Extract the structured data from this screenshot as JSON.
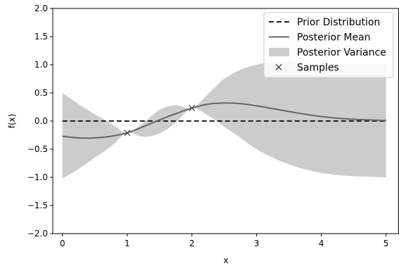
{
  "chart_data": {
    "type": "line",
    "xlabel": "x",
    "ylabel": "f(x)",
    "xlim": [
      -0.15,
      5.2
    ],
    "ylim": [
      -2.0,
      2.0
    ],
    "xticks": [
      0,
      1,
      2,
      3,
      4,
      5
    ],
    "yticks": [
      -2.0,
      -1.5,
      -1.0,
      -0.5,
      0.0,
      0.5,
      1.0,
      1.5,
      2.0
    ],
    "xtick_labels": [
      "0",
      "1",
      "2",
      "3",
      "4",
      "5"
    ],
    "ytick_labels": [
      "−2.0",
      "−1.5",
      "−1.0",
      "−0.5",
      "0.0",
      "0.5",
      "1.0",
      "1.5",
      "2.0"
    ],
    "grid": false,
    "legend_position": "top-right",
    "series": [
      {
        "name": "Prior Distribution",
        "kind": "line",
        "style": "dashed",
        "color": "#222222",
        "x": [
          0,
          5
        ],
        "y": [
          0.0,
          0.0
        ]
      },
      {
        "name": "Posterior Mean",
        "kind": "line",
        "style": "solid",
        "color": "#666666",
        "x": [
          0,
          0.25,
          0.5,
          0.75,
          1.0,
          1.25,
          1.5,
          1.75,
          2.0,
          2.25,
          2.5,
          2.75,
          3.0,
          3.25,
          3.5,
          3.75,
          4.0,
          4.25,
          4.5,
          4.75,
          5.0
        ],
        "y": [
          -0.27,
          -0.3,
          -0.3,
          -0.27,
          -0.21,
          -0.1,
          0.02,
          0.13,
          0.23,
          0.3,
          0.32,
          0.31,
          0.27,
          0.22,
          0.17,
          0.12,
          0.08,
          0.05,
          0.03,
          0.02,
          0.01
        ]
      },
      {
        "name": "Posterior Variance",
        "kind": "band",
        "color": "#cccccc",
        "x": [
          0,
          0.25,
          0.5,
          0.75,
          1.0,
          1.25,
          1.5,
          1.75,
          2.0,
          2.25,
          2.5,
          2.75,
          3.0,
          3.25,
          3.5,
          3.75,
          4.0,
          4.25,
          4.5,
          4.75,
          5.0
        ],
        "upper": [
          0.5,
          0.3,
          0.12,
          -0.04,
          -0.21,
          -0.03,
          0.2,
          0.28,
          0.23,
          0.48,
          0.75,
          0.91,
          1.0,
          1.05,
          1.05,
          1.03,
          1.02,
          1.01,
          1.01,
          1.01,
          1.01
        ],
        "lower": [
          -1.02,
          -0.85,
          -0.65,
          -0.45,
          -0.21,
          -0.28,
          -0.22,
          -0.03,
          0.23,
          0.1,
          -0.1,
          -0.3,
          -0.5,
          -0.65,
          -0.77,
          -0.86,
          -0.92,
          -0.96,
          -0.98,
          -0.99,
          -1.0
        ]
      },
      {
        "name": "Samples",
        "kind": "scatter",
        "marker": "x",
        "color": "#444444",
        "x": [
          1,
          2
        ],
        "y": [
          -0.21,
          0.23
        ]
      }
    ]
  }
}
